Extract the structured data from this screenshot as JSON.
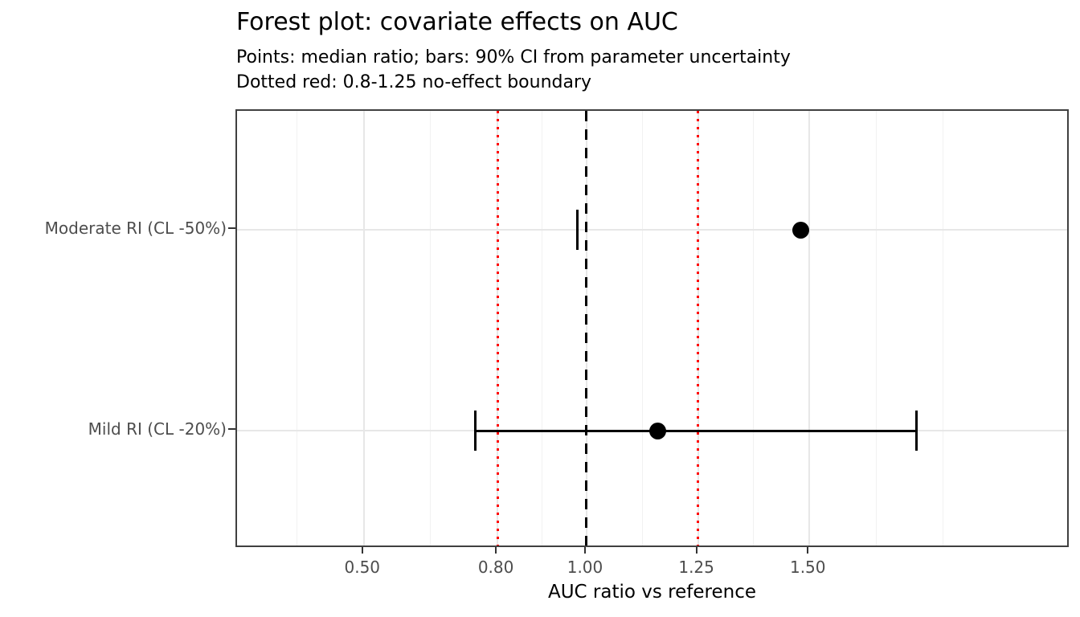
{
  "chart_data": {
    "type": "forest",
    "title": "Forest plot: covariate effects on AUC",
    "subtitle_lines": [
      "Points: median ratio; bars: 90% CI from parameter uncertainty",
      "Dotted red: 0.8-1.25 no-effect boundary"
    ],
    "xlabel": "AUC ratio vs reference",
    "ylabel": "",
    "categories": [
      "Moderate RI (CL -50%)",
      "Mild RI (CL -20%)"
    ],
    "series": [
      {
        "name": "Moderate RI (CL -50%)",
        "median": 1.48,
        "ci90_lower": 0.98,
        "ci90_upper": 0.98
      },
      {
        "name": "Mild RI (CL -20%)",
        "median": 1.16,
        "ci90_lower": 0.75,
        "ci90_upper": 1.74
      }
    ],
    "x_tick_labels": [
      "0.50",
      "0.80",
      "1.00",
      "1.25",
      "1.50"
    ],
    "x_tick_values": [
      0.5,
      0.8,
      1.0,
      1.25,
      1.5
    ],
    "x_domain": [
      0.2155,
      2.0857
    ],
    "minor_gridline_values": [
      0.35,
      0.65,
      0.9,
      1.125,
      1.375,
      1.65,
      1.8
    ],
    "reference_lines": [
      {
        "value": 1.0,
        "style": "dashed",
        "color": "#000000",
        "name": "unity-line"
      },
      {
        "value": 0.8,
        "style": "dotted",
        "color": "#ff0000",
        "name": "no-effect-lower"
      },
      {
        "value": 1.25,
        "style": "dotted",
        "color": "#ff0000",
        "name": "no-effect-upper"
      }
    ],
    "no_effect_boundary": [
      0.8,
      1.25
    ],
    "row_center_frac": [
      0.2716,
      0.7303
    ],
    "grid": true,
    "legend_position": "none",
    "colors": {
      "point": "#000000",
      "errorbar": "#000000",
      "boundary_red": "#ff0000",
      "gridline_major": "#e7e7e7",
      "gridline_minor": "#f1f1f1",
      "panel_border": "#404040",
      "axis_text": "#4d4d4d",
      "text": "#000000"
    }
  }
}
